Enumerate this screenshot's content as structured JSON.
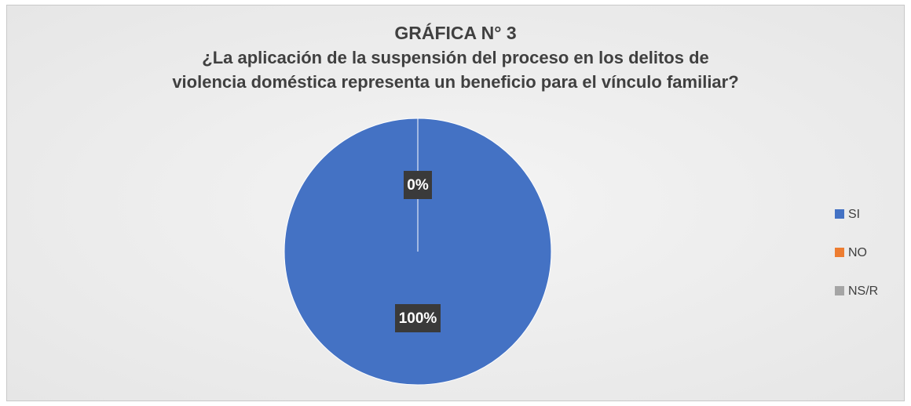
{
  "chart_data": {
    "type": "pie",
    "title": "GRÁFICA N° 3",
    "subtitle": "¿La aplicación de la suspensión  del proceso en los delitos de\nviolencia doméstica representa un beneficio para el vínculo familiar?",
    "categories": [
      "SI",
      "NO",
      "NS/R"
    ],
    "values": [
      100,
      0,
      0
    ],
    "value_labels": [
      "100%",
      "0%",
      "0%"
    ],
    "colors": [
      "#4472c4",
      "#ed7d31",
      "#a5a5a5"
    ],
    "legend": "right"
  }
}
